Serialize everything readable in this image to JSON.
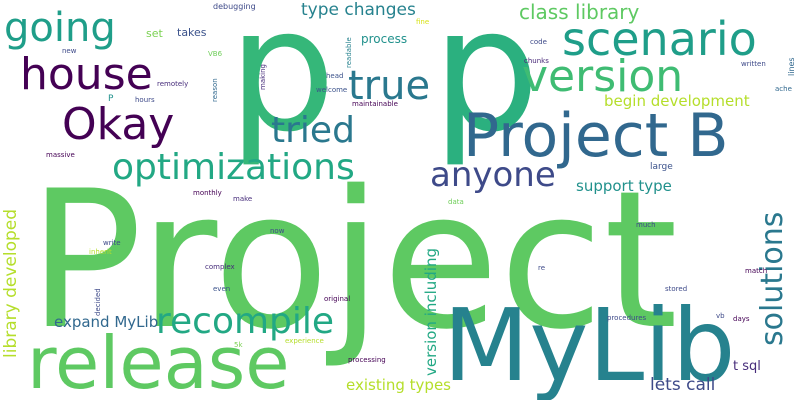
{
  "words": [
    {
      "text": "Project",
      "color": "#5ec962"
    },
    {
      "text": "p",
      "color": "#35b779"
    },
    {
      "text": "p",
      "color": "#2bb07f"
    },
    {
      "text": "MyLib",
      "color": "#26828e"
    },
    {
      "text": "release",
      "color": "#5ec962"
    },
    {
      "text": "Project B",
      "color": "#31688e"
    },
    {
      "text": "scenario",
      "color": "#1f9e89"
    },
    {
      "text": "version",
      "color": "#3fbc73"
    },
    {
      "text": "house",
      "color": "#440154"
    },
    {
      "text": "Okay",
      "color": "#440154"
    },
    {
      "text": "going",
      "color": "#1f9e89"
    },
    {
      "text": "true",
      "color": "#2a788e"
    },
    {
      "text": "tried",
      "color": "#2a788e"
    },
    {
      "text": "optimizations",
      "color": "#22a884"
    },
    {
      "text": "recompile",
      "color": "#22a884"
    },
    {
      "text": "anyone",
      "color": "#3e4a89"
    },
    {
      "text": "solutions",
      "color": "#2a788e"
    },
    {
      "text": "class library",
      "color": "#5ec962"
    },
    {
      "text": "type changes",
      "color": "#26828e"
    },
    {
      "text": "begin development",
      "color": "#b5de2b"
    },
    {
      "text": "support type",
      "color": "#21918c"
    },
    {
      "text": "expand MyLib",
      "color": "#31688e"
    },
    {
      "text": "library developed",
      "color": "#b5de2b"
    },
    {
      "text": "version including",
      "color": "#22a884"
    },
    {
      "text": "existing types",
      "color": "#b5de2b"
    },
    {
      "text": "lets call",
      "color": "#3e4a89"
    },
    {
      "text": "t sql",
      "color": "#472d7b"
    },
    {
      "text": "process",
      "color": "#21918c"
    },
    {
      "text": "set",
      "color": "#7ad151"
    },
    {
      "text": "takes",
      "color": "#3b528b"
    },
    {
      "text": "debugging",
      "color": "#3e4a89"
    },
    {
      "text": "new",
      "color": "#3e4a89"
    },
    {
      "text": "VB6",
      "color": "#6ece58"
    },
    {
      "text": "reason",
      "color": "#31688e"
    },
    {
      "text": "making",
      "color": "#472d7b"
    },
    {
      "text": "remotely",
      "color": "#472d7b"
    },
    {
      "text": "P",
      "color": "#21918c"
    },
    {
      "text": "hours",
      "color": "#3e4a89"
    },
    {
      "text": "head",
      "color": "#3b528b"
    },
    {
      "text": "welcome",
      "color": "#3b528b"
    },
    {
      "text": "maintainable",
      "color": "#440154"
    },
    {
      "text": "readable",
      "color": "#26828e"
    },
    {
      "text": "fine",
      "color": "#d8e219"
    },
    {
      "text": "code",
      "color": "#3e4a89"
    },
    {
      "text": "chunks",
      "color": "#482878"
    },
    {
      "text": "lines",
      "color": "#31688e"
    },
    {
      "text": "written",
      "color": "#3e4a89"
    },
    {
      "text": "ache",
      "color": "#31688e"
    },
    {
      "text": "massive",
      "color": "#440154"
    },
    {
      "text": "large",
      "color": "#3b528b"
    },
    {
      "text": "monthly",
      "color": "#440154"
    },
    {
      "text": "make",
      "color": "#472d7b"
    },
    {
      "text": "data",
      "color": "#6ece58"
    },
    {
      "text": "now",
      "color": "#3e4a89"
    },
    {
      "text": "write",
      "color": "#3e4a89"
    },
    {
      "text": "inherit",
      "color": "#b5de2b"
    },
    {
      "text": "much",
      "color": "#3e4a89"
    },
    {
      "text": "complex",
      "color": "#472d7b"
    },
    {
      "text": "even",
      "color": "#3b528b"
    },
    {
      "text": "decided",
      "color": "#3e4a89"
    },
    {
      "text": "re",
      "color": "#3e4a89"
    },
    {
      "text": "match",
      "color": "#440154"
    },
    {
      "text": "stored",
      "color": "#3e4a89"
    },
    {
      "text": "original",
      "color": "#440154"
    },
    {
      "text": "procedures",
      "color": "#3e4a89"
    },
    {
      "text": "vb",
      "color": "#3e4a89"
    },
    {
      "text": "days",
      "color": "#440154"
    },
    {
      "text": "5k",
      "color": "#7ad151"
    },
    {
      "text": "experience",
      "color": "#b5de2b"
    },
    {
      "text": "processing",
      "color": "#440154"
    }
  ]
}
